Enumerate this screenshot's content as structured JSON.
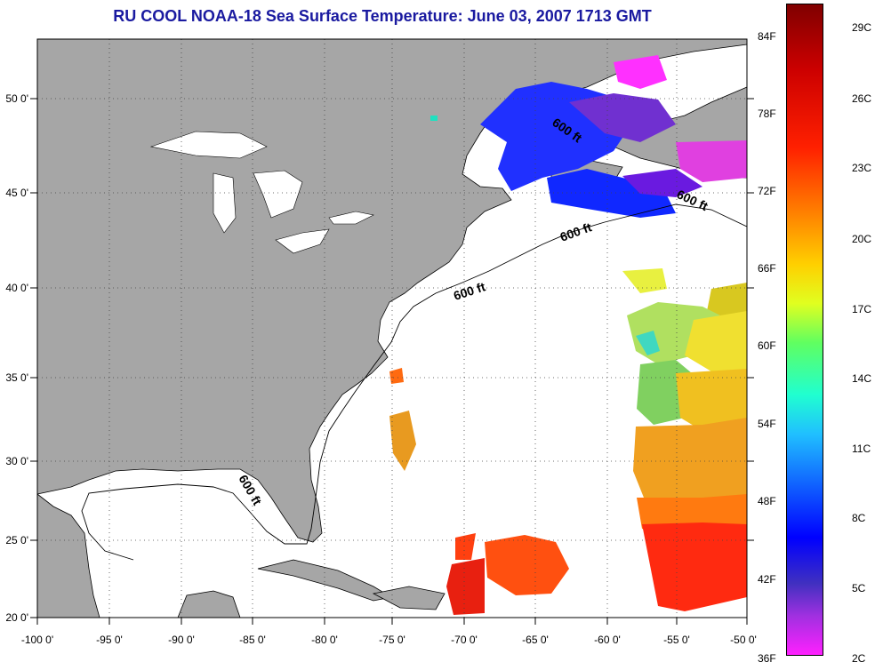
{
  "title": "RU COOL  NOAA-18  Sea Surface Temperature:  June 03, 2007 1713 GMT",
  "lon_labels": [
    "-100 0'",
    "-95 0'",
    "-90 0'",
    "-85 0'",
    "-80 0'",
    "-75 0'",
    "-70 0'",
    "-65 0'",
    "-60 0'",
    "-55 0'",
    "-50 0'"
  ],
  "lat_labels": [
    "50 0'",
    "45 0'",
    "40 0'",
    "35 0'",
    "30 0'",
    "25 0'",
    "20 0'"
  ],
  "contour_label": "600 ft",
  "colorbar": {
    "fahrenheit": [
      "84F",
      "78F",
      "72F",
      "66F",
      "60F",
      "54F",
      "48F",
      "42F",
      "36F"
    ],
    "celsius": [
      "29C",
      "26C",
      "23C",
      "20C",
      "17C",
      "14C",
      "11C",
      "8C",
      "5C",
      "2C"
    ]
  },
  "colors": {
    "land": "#a6a6a6",
    "title": "#1a1aa0",
    "ocean": "#ffffff"
  }
}
